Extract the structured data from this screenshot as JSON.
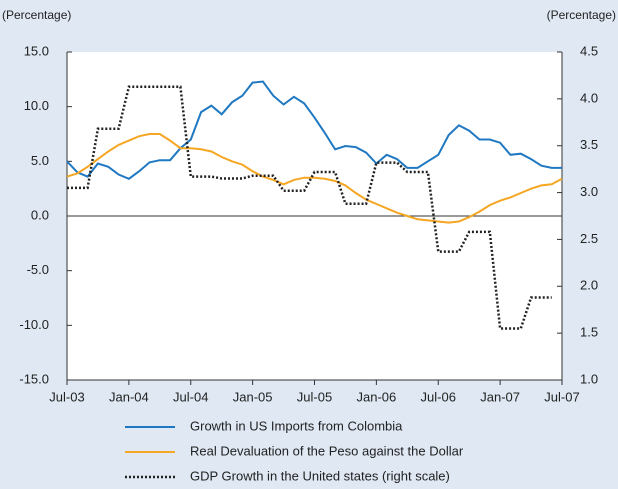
{
  "chart_data": {
    "type": "line",
    "y_label": "(Percentage)",
    "y2_label": "(Percentage)",
    "categories": [
      "Jul-03",
      null,
      null,
      null,
      null,
      null,
      "Jan-04",
      null,
      null,
      null,
      null,
      null,
      "Jul-04",
      null,
      null,
      null,
      null,
      null,
      "Jan-05",
      null,
      null,
      null,
      null,
      null,
      "Jul-05",
      null,
      null,
      null,
      null,
      null,
      "Jan-06",
      null,
      null,
      null,
      null,
      null,
      "Jul-06",
      null,
      null,
      null,
      null,
      null,
      "Jan-07",
      null,
      null,
      null,
      null,
      null,
      "Jul-07"
    ],
    "series": [
      {
        "name": "Growth in US Imports from Colombia",
        "color": "#1f78c1",
        "values": [
          5.0,
          4.0,
          3.6,
          4.8,
          4.5,
          3.8,
          3.4,
          4.1,
          4.9,
          5.1,
          5.1,
          6.2,
          7.0,
          9.5,
          10.1,
          9.3,
          10.4,
          11.0,
          12.2,
          12.3,
          11.0,
          10.2,
          10.9,
          10.3,
          9.0,
          7.6,
          6.1,
          6.4,
          6.3,
          5.8,
          4.8,
          5.6,
          5.2,
          4.4,
          4.4,
          5.0,
          5.6,
          7.4,
          8.3,
          7.8,
          7.0,
          7.0,
          6.7,
          5.6,
          5.7,
          5.2,
          4.6,
          4.4,
          4.4
        ]
      },
      {
        "name": "Real Devaluation of the Peso against the Dollar",
        "color": "#f5a623",
        "values": [
          3.6,
          3.9,
          4.5,
          5.2,
          5.9,
          6.5,
          6.9,
          7.3,
          7.5,
          7.5,
          6.9,
          6.2,
          6.2,
          6.1,
          5.9,
          5.4,
          5.0,
          4.7,
          4.1,
          3.6,
          3.3,
          2.9,
          3.3,
          3.5,
          3.5,
          3.4,
          3.2,
          2.8,
          2.1,
          1.5,
          1.1,
          0.7,
          0.3,
          0.0,
          -0.3,
          -0.4,
          -0.5,
          -0.6,
          -0.5,
          -0.1,
          0.4,
          1.0,
          1.4,
          1.7,
          2.1,
          2.5,
          2.8,
          2.9,
          3.4
        ]
      },
      {
        "name": "GDP Growth in the United states (right scale)",
        "color": "#222222",
        "dashed": true,
        "axis": "y2",
        "values": [
          3.05,
          3.05,
          3.05,
          3.68,
          3.68,
          3.68,
          4.13,
          4.13,
          4.13,
          4.13,
          4.13,
          4.13,
          3.17,
          3.17,
          3.17,
          3.15,
          3.15,
          3.15,
          3.18,
          3.18,
          3.18,
          3.02,
          3.02,
          3.02,
          3.22,
          3.22,
          3.22,
          2.88,
          2.88,
          2.88,
          3.32,
          3.32,
          3.32,
          3.22,
          3.22,
          3.22,
          2.37,
          2.37,
          2.37,
          2.58,
          2.58,
          2.58,
          1.55,
          1.55,
          1.55,
          1.88,
          1.88,
          1.88,
          null
        ]
      }
    ],
    "ylim": [
      -15,
      15
    ],
    "yticks": [
      {
        "value": -15,
        "label": "-15.0"
      },
      {
        "value": -10,
        "label": "-10.0"
      },
      {
        "value": -5,
        "label": "-5.0"
      },
      {
        "value": 0,
        "label": "0.0"
      },
      {
        "value": 5,
        "label": "5.0"
      },
      {
        "value": 10,
        "label": "10.0"
      },
      {
        "value": 15,
        "label": "15.0"
      }
    ],
    "y2lim": [
      1,
      4.5
    ],
    "y2ticks": [
      {
        "value": 1,
        "label": "1.0"
      },
      1.5,
      {
        "value": 2,
        "label": "2.0"
      },
      2.5,
      {
        "value": 3,
        "label": "3.0"
      },
      3.5,
      {
        "value": 4,
        "label": "4.0"
      },
      4.5
    ],
    "grid": false
  }
}
